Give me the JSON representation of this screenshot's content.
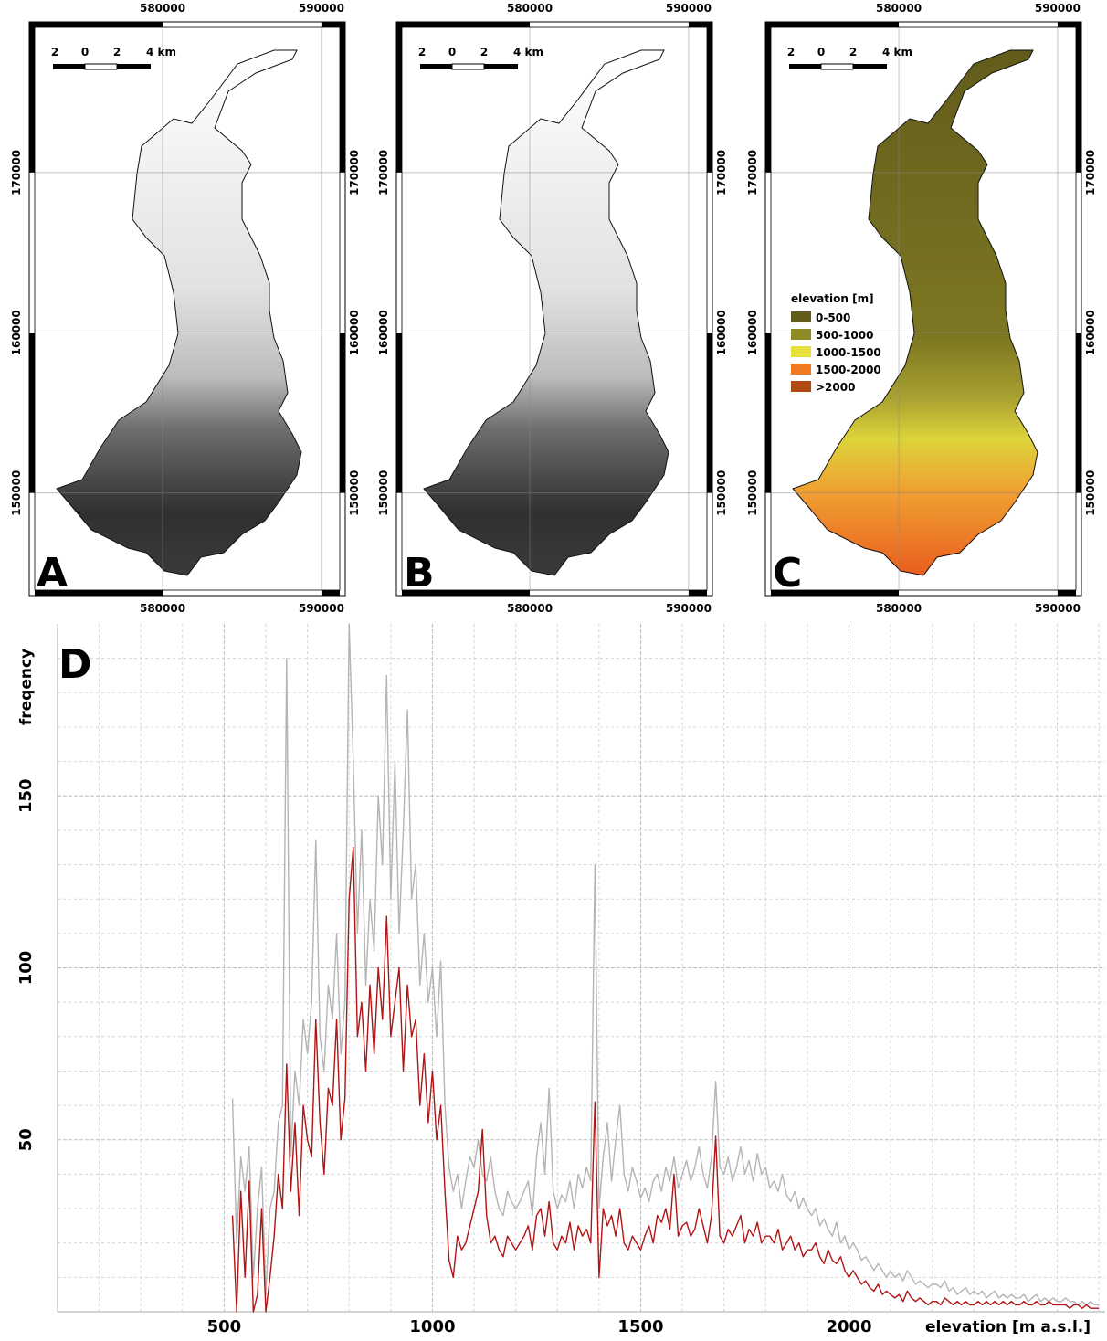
{
  "maps": {
    "xlim": [
      571600,
      591500
    ],
    "ylim": [
      143600,
      179400
    ],
    "xticks": [
      580000,
      590000
    ],
    "yticks": [
      150000,
      160000,
      170000
    ],
    "scale_labels": [
      "2",
      "0",
      "2",
      "4 km"
    ],
    "panels": [
      {
        "label": "A"
      },
      {
        "label": "B"
      },
      {
        "label": "C",
        "legend": {
          "title": "elevation [m]",
          "items": [
            {
              "label": "0-500",
              "color": "#625c1c"
            },
            {
              "label": "500-1000",
              "color": "#8e8a25"
            },
            {
              "label": "1000-1500",
              "color": "#e6df3c"
            },
            {
              "label": "1500-2000",
              "color": "#f07a22"
            },
            {
              "label": ">2000",
              "color": "#b04a12"
            }
          ]
        }
      }
    ]
  },
  "chart_data": {
    "type": "line",
    "panel_label": "D",
    "y_label": "freqency",
    "x_label": "elevation [m a.s.l.]",
    "xlim": [
      100,
      2615
    ],
    "ylim": [
      0,
      200
    ],
    "xticks": [
      500,
      1000,
      1500,
      2000
    ],
    "yticks": [
      50,
      100,
      150
    ],
    "x_minor_ticks": [
      100,
      200,
      300,
      400,
      600,
      700,
      800,
      900,
      1100,
      1200,
      1300,
      1400,
      1600,
      1700,
      1800,
      1900,
      2100,
      2200,
      2300,
      2400,
      2500,
      2600
    ],
    "y_minor_ticks": [
      10,
      20,
      30,
      40,
      60,
      70,
      80,
      90,
      110,
      120,
      130,
      140,
      160,
      170,
      180,
      190
    ],
    "grid": true,
    "x": [
      520,
      530,
      540,
      550,
      560,
      570,
      580,
      590,
      600,
      610,
      620,
      630,
      640,
      650,
      660,
      670,
      680,
      690,
      700,
      710,
      720,
      730,
      740,
      750,
      760,
      770,
      780,
      790,
      800,
      810,
      820,
      830,
      840,
      850,
      860,
      870,
      880,
      890,
      900,
      910,
      920,
      930,
      940,
      950,
      960,
      970,
      980,
      990,
      1000,
      1010,
      1020,
      1030,
      1040,
      1050,
      1060,
      1070,
      1080,
      1090,
      1100,
      1110,
      1120,
      1130,
      1140,
      1150,
      1160,
      1170,
      1180,
      1190,
      1200,
      1210,
      1220,
      1230,
      1240,
      1250,
      1260,
      1270,
      1280,
      1290,
      1300,
      1310,
      1320,
      1330,
      1340,
      1350,
      1360,
      1370,
      1380,
      1390,
      1400,
      1410,
      1420,
      1430,
      1440,
      1450,
      1460,
      1470,
      1480,
      1490,
      1500,
      1510,
      1520,
      1530,
      1540,
      1550,
      1560,
      1570,
      1580,
      1590,
      1600,
      1610,
      1620,
      1630,
      1640,
      1650,
      1660,
      1670,
      1680,
      1690,
      1700,
      1710,
      1720,
      1730,
      1740,
      1750,
      1760,
      1770,
      1780,
      1790,
      1800,
      1810,
      1820,
      1830,
      1840,
      1850,
      1860,
      1870,
      1880,
      1890,
      1900,
      1910,
      1920,
      1930,
      1940,
      1950,
      1960,
      1970,
      1980,
      1990,
      2000,
      2010,
      2020,
      2030,
      2040,
      2050,
      2060,
      2070,
      2080,
      2090,
      2100,
      2110,
      2120,
      2130,
      2140,
      2150,
      2160,
      2170,
      2180,
      2190,
      2200,
      2210,
      2220,
      2230,
      2240,
      2250,
      2260,
      2270,
      2280,
      2290,
      2300,
      2310,
      2320,
      2330,
      2340,
      2350,
      2360,
      2370,
      2380,
      2390,
      2400,
      2410,
      2420,
      2430,
      2440,
      2450,
      2460,
      2470,
      2480,
      2490,
      2500,
      2510,
      2520,
      2530,
      2540,
      2550,
      2560,
      2570,
      2580,
      2590,
      2600
    ],
    "series": [
      {
        "color": "#b4b4b4",
        "values": [
          62,
          20,
          45,
          35,
          48,
          10,
          30,
          42,
          5,
          30,
          35,
          55,
          60,
          190,
          45,
          70,
          60,
          85,
          75,
          90,
          137,
          80,
          70,
          95,
          85,
          110,
          75,
          90,
          200,
          160,
          110,
          140,
          95,
          120,
          105,
          150,
          130,
          185,
          120,
          160,
          110,
          140,
          175,
          120,
          130,
          95,
          110,
          90,
          100,
          80,
          102,
          60,
          42,
          35,
          40,
          30,
          38,
          45,
          42,
          50,
          40,
          38,
          45,
          35,
          30,
          28,
          35,
          32,
          30,
          32,
          35,
          38,
          28,
          45,
          55,
          40,
          65,
          35,
          30,
          34,
          32,
          38,
          30,
          40,
          36,
          42,
          38,
          130,
          30,
          45,
          55,
          38,
          50,
          60,
          40,
          35,
          42,
          38,
          33,
          36,
          32,
          38,
          40,
          35,
          42,
          38,
          45,
          36,
          40,
          44,
          38,
          42,
          48,
          40,
          36,
          45,
          67,
          42,
          40,
          45,
          38,
          42,
          48,
          40,
          44,
          38,
          46,
          40,
          42,
          36,
          38,
          35,
          40,
          34,
          32,
          35,
          30,
          33,
          30,
          28,
          30,
          25,
          27,
          24,
          22,
          26,
          20,
          22,
          18,
          20,
          18,
          15,
          16,
          14,
          12,
          14,
          12,
          10,
          12,
          10,
          11,
          9,
          12,
          10,
          8,
          9,
          8,
          7,
          8,
          8,
          7,
          9,
          6,
          7,
          5,
          6,
          7,
          5,
          6,
          5,
          6,
          4,
          5,
          6,
          4,
          5,
          4,
          5,
          4,
          4,
          5,
          3,
          4,
          5,
          3,
          4,
          3,
          4,
          3,
          3,
          4,
          3,
          3,
          2,
          3,
          2,
          3,
          2,
          2
        ]
      },
      {
        "color": "#b01414",
        "values": [
          28,
          0,
          35,
          10,
          38,
          0,
          5,
          30,
          0,
          10,
          22,
          40,
          30,
          72,
          35,
          55,
          28,
          60,
          50,
          45,
          85,
          55,
          40,
          65,
          60,
          85,
          50,
          62,
          120,
          135,
          80,
          90,
          70,
          95,
          75,
          100,
          85,
          115,
          80,
          90,
          100,
          70,
          95,
          80,
          85,
          60,
          75,
          55,
          70,
          50,
          60,
          35,
          15,
          10,
          22,
          18,
          20,
          25,
          30,
          35,
          53,
          28,
          20,
          22,
          18,
          16,
          22,
          20,
          18,
          20,
          22,
          25,
          18,
          28,
          30,
          22,
          32,
          20,
          18,
          22,
          20,
          26,
          18,
          25,
          22,
          24,
          20,
          61,
          10,
          30,
          25,
          28,
          22,
          30,
          20,
          18,
          22,
          20,
          18,
          22,
          25,
          20,
          28,
          26,
          30,
          24,
          40,
          22,
          25,
          26,
          22,
          24,
          30,
          25,
          20,
          28,
          51,
          22,
          20,
          24,
          22,
          25,
          28,
          20,
          24,
          22,
          26,
          20,
          22,
          22,
          20,
          24,
          18,
          20,
          22,
          18,
          20,
          16,
          18,
          18,
          20,
          16,
          14,
          18,
          15,
          14,
          16,
          12,
          10,
          12,
          10,
          8,
          9,
          7,
          6,
          8,
          5,
          6,
          5,
          4,
          5,
          3,
          6,
          4,
          3,
          4,
          3,
          2,
          3,
          3,
          2,
          4,
          3,
          2,
          3,
          2,
          3,
          2,
          2,
          3,
          2,
          3,
          2,
          3,
          2,
          3,
          2,
          3,
          2,
          2,
          3,
          2,
          2,
          3,
          2,
          2,
          3,
          2,
          2,
          2,
          2,
          1,
          2,
          2,
          1,
          2,
          1,
          1,
          1
        ]
      }
    ]
  }
}
